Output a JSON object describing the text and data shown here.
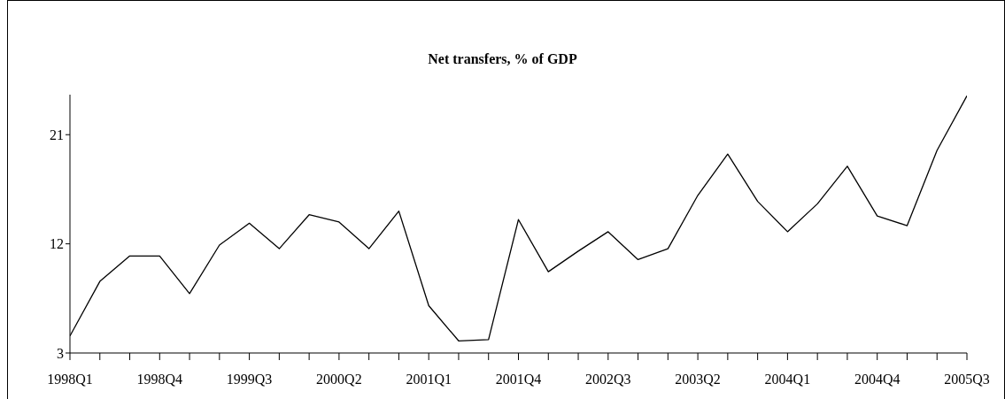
{
  "chart_data": {
    "type": "line",
    "title": "Net transfers, % of GDP",
    "categories": [
      "1998Q1",
      null,
      null,
      "1998Q4",
      null,
      null,
      "1999Q3",
      null,
      null,
      "2000Q2",
      null,
      null,
      "2001Q1",
      null,
      null,
      "2001Q4",
      null,
      null,
      "2002Q3",
      null,
      null,
      "2003Q2",
      null,
      null,
      "2004Q1",
      null,
      null,
      "2004Q4",
      null,
      null,
      "2005Q3"
    ],
    "series": [
      {
        "color": "#000000",
        "values": [
          4.4,
          8.9,
          11.0,
          11.0,
          7.9,
          11.9,
          13.7,
          11.6,
          14.4,
          13.8,
          11.6,
          14.7,
          6.9,
          4.0,
          4.1,
          14.0,
          9.7,
          11.4,
          13.0,
          10.7,
          11.6,
          16.0,
          19.4,
          15.5,
          13.0,
          15.3,
          18.4,
          14.3,
          13.5,
          19.7,
          24.2
        ]
      }
    ],
    "ylim": [
      3,
      24.3
    ],
    "yticks": [
      3,
      12,
      21
    ],
    "grid": false,
    "legend": false,
    "marker": "none",
    "line_style": "solid"
  }
}
